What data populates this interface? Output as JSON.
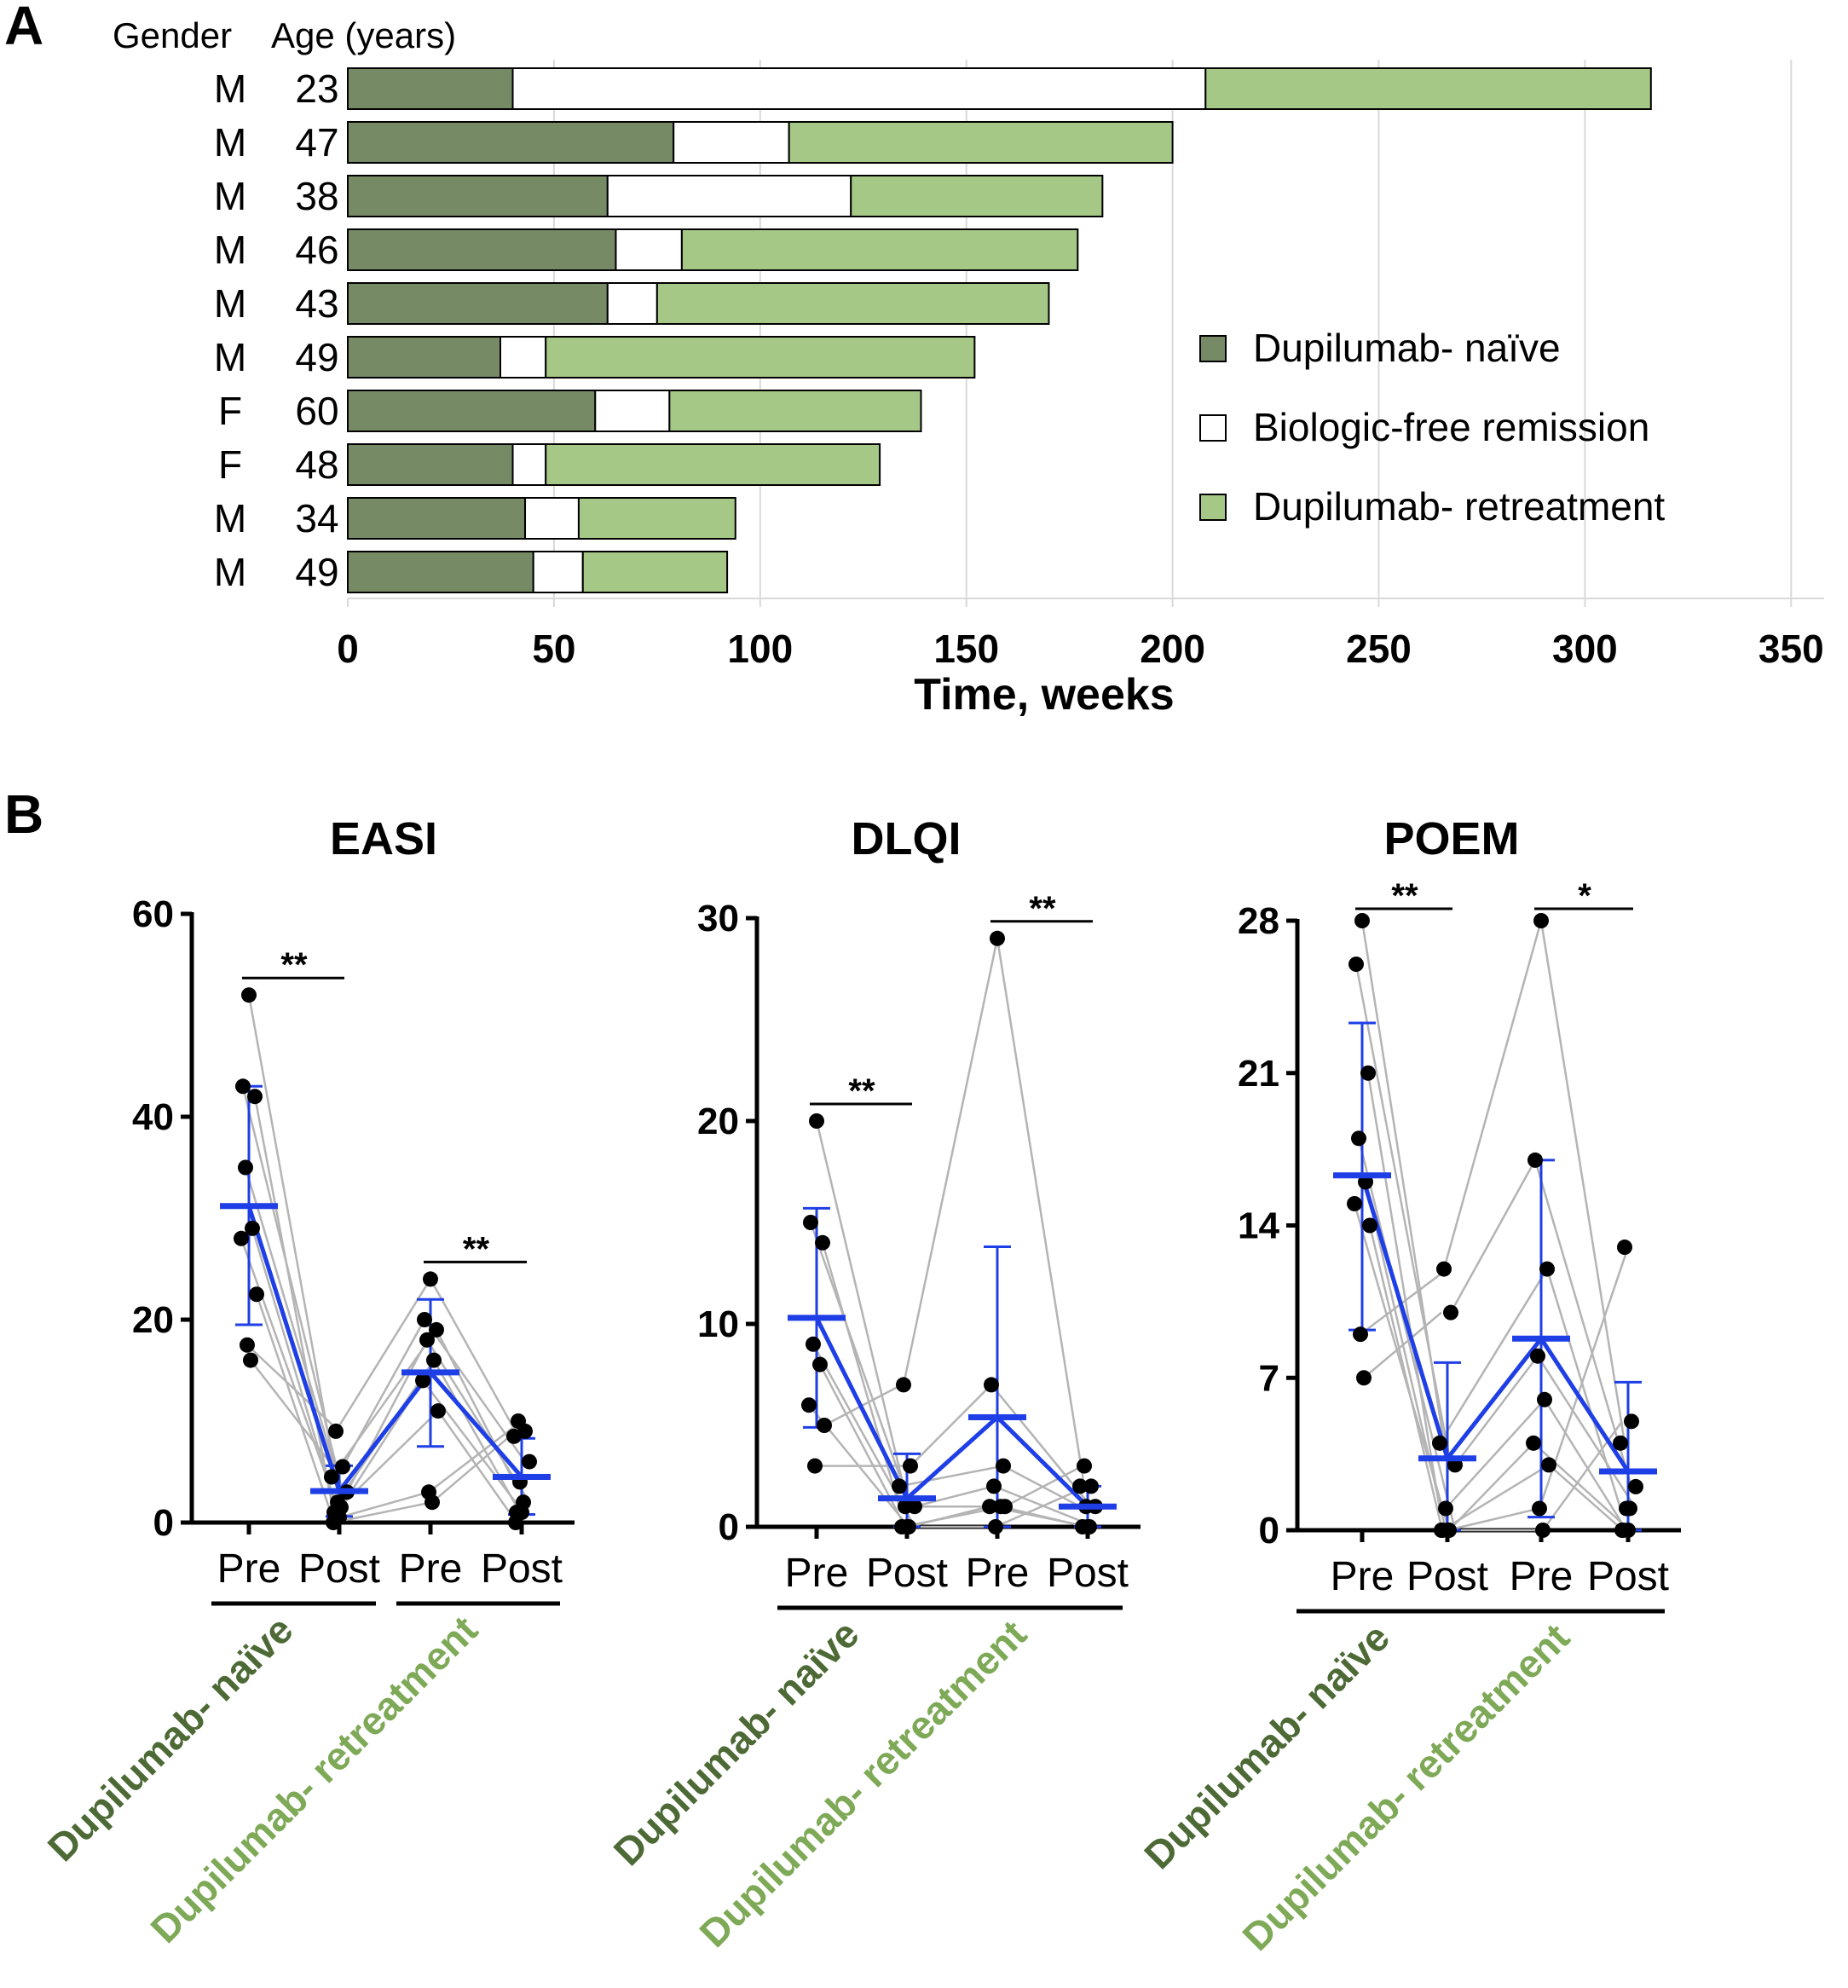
{
  "panel_a_letter": "A",
  "panel_b_letter": "B",
  "colors": {
    "naive": "#778a66",
    "remission": "#ffffff",
    "retreatment": "#a5c886",
    "naive_label": "#4d6a36",
    "retreatment_label": "#7ea957",
    "mean_line": "#1f3fe6",
    "connector": "#b4b4b4",
    "point": "#000000"
  },
  "chart_data": [
    {
      "type": "bar",
      "stacked": true,
      "orientation": "horizontal",
      "header_gender": "Gender",
      "header_age": "Age (years)",
      "xlabel": "Time, weeks",
      "xlim": [
        0,
        358
      ],
      "xticks": [
        0,
        50,
        100,
        150,
        200,
        250,
        300,
        350
      ],
      "grid": true,
      "legend_position": "right",
      "patients": [
        {
          "gender": "M",
          "age": "23",
          "naive": 40,
          "remission": 168,
          "retreatment": 108
        },
        {
          "gender": "M",
          "age": "47",
          "naive": 79,
          "remission": 28,
          "retreatment": 93
        },
        {
          "gender": "M",
          "age": "38",
          "naive": 63,
          "remission": 59,
          "retreatment": 61
        },
        {
          "gender": "M",
          "age": "46",
          "naive": 65,
          "remission": 16,
          "retreatment": 96
        },
        {
          "gender": "M",
          "age": "43",
          "naive": 63,
          "remission": 12,
          "retreatment": 95
        },
        {
          "gender": "M",
          "age": "49",
          "naive": 37,
          "remission": 11,
          "retreatment": 104
        },
        {
          "gender": "F",
          "age": "60",
          "naive": 60,
          "remission": 18,
          "retreatment": 61
        },
        {
          "gender": "F",
          "age": "48",
          "naive": 40,
          "remission": 8,
          "retreatment": 81
        },
        {
          "gender": "M",
          "age": "34",
          "naive": 43,
          "remission": 13,
          "retreatment": 38
        },
        {
          "gender": "M",
          "age": "49",
          "naive": 45,
          "remission": 12,
          "retreatment": 35
        }
      ],
      "legend": [
        {
          "key": "naive",
          "label": "Dupilumab- naïve"
        },
        {
          "key": "remission",
          "label": "Biologic-free remission"
        },
        {
          "key": "retreatment",
          "label": "Dupilumab- retreatment"
        }
      ]
    },
    {
      "type": "scatter",
      "title": "EASI",
      "ylim": [
        0,
        60
      ],
      "yticks": [
        0,
        20,
        40,
        60
      ],
      "categories": [
        "Pre",
        "Post",
        "Pre",
        "Post"
      ],
      "groups": [
        "Dupilumab- naïve",
        "Dupilumab- retreatment"
      ],
      "naive_pre": [
        52,
        43,
        42,
        35,
        29,
        28,
        22.5,
        17.5,
        16
      ],
      "naive_post": [
        9,
        5.5,
        4.5,
        3,
        2,
        1.5,
        1,
        0.5,
        0
      ],
      "retreat_pre": [
        24,
        20,
        19,
        18,
        16,
        14,
        11,
        3,
        2
      ],
      "retreat_post": [
        10,
        9,
        8.5,
        6,
        4,
        2,
        1,
        1,
        0
      ],
      "means": [
        31.2,
        3.1,
        14.8,
        4.5
      ],
      "sd_low": [
        19.5,
        0.6,
        7.5,
        0.8
      ],
      "sd_high": [
        43,
        5.6,
        22,
        8.3
      ],
      "significance": [
        "**",
        "**"
      ]
    },
    {
      "type": "scatter",
      "title": "DLQI",
      "ylim": [
        0,
        30
      ],
      "yticks": [
        0,
        10,
        20,
        30
      ],
      "categories": [
        "Pre",
        "Post",
        "Pre",
        "Post"
      ],
      "groups": [
        "Dupilumab- naïve",
        "Dupilumab- retreatment"
      ],
      "naive_pre": [
        20,
        15,
        14,
        9,
        8,
        6,
        5,
        3
      ],
      "naive_post": [
        7,
        3,
        2,
        1,
        1,
        0,
        0,
        0
      ],
      "retreat_pre": [
        29,
        7,
        3,
        2,
        1,
        1,
        1,
        0
      ],
      "retreat_post": [
        3,
        2,
        2,
        1,
        1,
        0,
        0,
        0
      ],
      "means": [
        10.3,
        1.4,
        5.4,
        1.0
      ],
      "sd_low": [
        4.9,
        0,
        0,
        0
      ],
      "sd_high": [
        15.7,
        3.6,
        13.8,
        2.0
      ],
      "significance": [
        "**",
        "**"
      ]
    },
    {
      "type": "scatter",
      "title": "POEM",
      "ylim": [
        0,
        28
      ],
      "yticks": [
        0,
        7,
        14,
        21,
        28
      ],
      "categories": [
        "Pre",
        "Post",
        "Pre",
        "Post"
      ],
      "groups": [
        "Dupilumab- naïve",
        "Dupilumab- retreatment"
      ],
      "naive_pre": [
        28,
        26,
        21,
        18,
        16,
        15,
        14,
        9,
        7
      ],
      "naive_post": [
        12,
        10,
        4,
        3,
        1,
        0,
        0,
        0,
        0
      ],
      "retreat_pre": [
        28,
        17,
        12,
        8,
        6,
        4,
        3,
        1,
        0
      ],
      "retreat_post": [
        13,
        5,
        4,
        2,
        1,
        1,
        0,
        0,
        0
      ],
      "means": [
        16.3,
        3.3,
        8.8,
        2.7
      ],
      "sd_low": [
        9.2,
        0,
        0.6,
        0
      ],
      "sd_high": [
        23.3,
        7.7,
        17,
        6.8
      ],
      "significance": [
        "**",
        "*"
      ]
    }
  ]
}
